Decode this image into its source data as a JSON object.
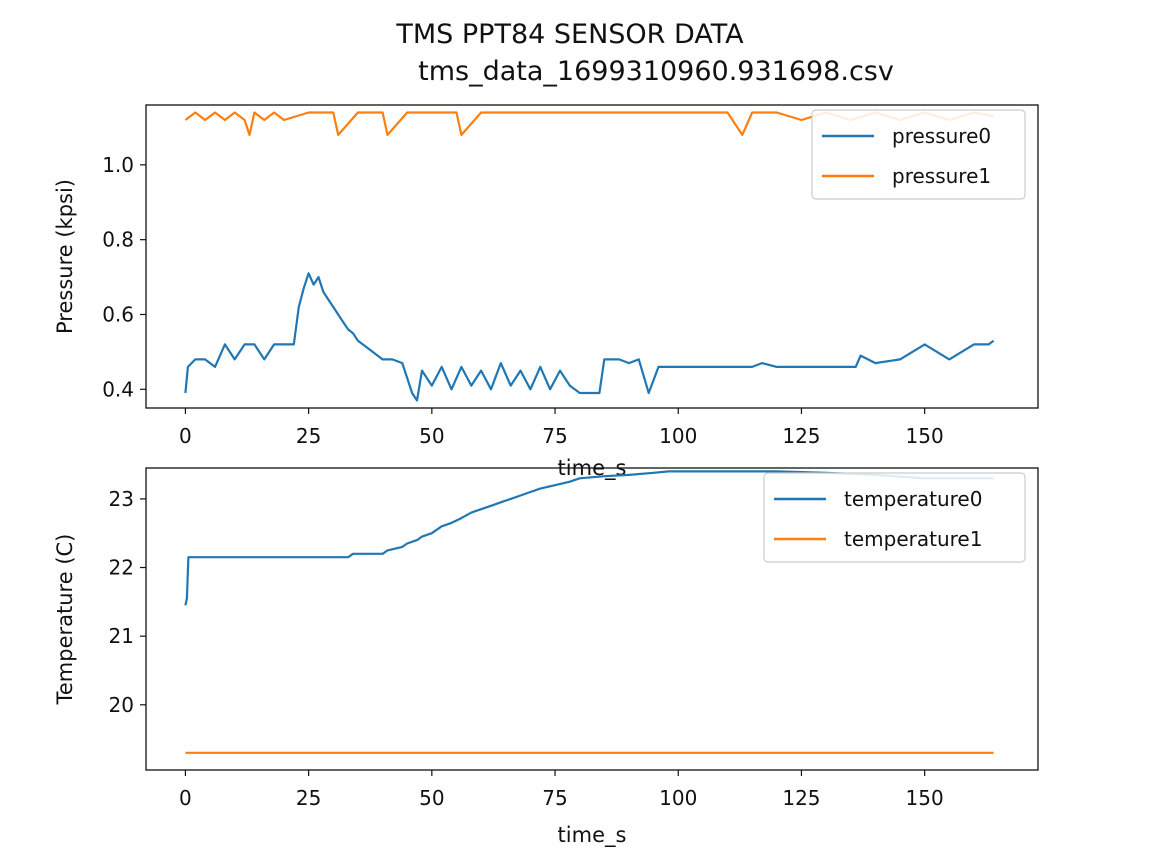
{
  "figure": {
    "title": "TMS PPT84 SENSOR DATA",
    "subtitle": "tms_data_1699310960.931698.csv"
  },
  "chart_data": [
    {
      "type": "line",
      "xlabel": "time_s",
      "ylabel": "Pressure (kpsi)",
      "xlim": [
        -8,
        173
      ],
      "ylim": [
        0.35,
        1.16
      ],
      "xticks": [
        0,
        25,
        50,
        75,
        100,
        125,
        150
      ],
      "yticks": [
        0.4,
        0.6,
        0.8,
        1.0
      ],
      "ytick_labels": [
        "0.4",
        "0.6",
        "0.8",
        "1.0"
      ],
      "legend_position": "top-right",
      "grid": false,
      "series": [
        {
          "name": "pressure0",
          "color": "#1f77b4",
          "x": [
            0,
            0.5,
            2,
            4,
            6,
            8,
            10,
            12,
            14,
            16,
            18,
            20,
            22,
            23,
            24,
            25,
            26,
            27,
            28,
            29,
            30,
            31,
            32,
            33,
            34,
            35,
            36,
            37,
            38,
            39,
            40,
            42,
            44,
            46,
            47,
            48,
            50,
            52,
            54,
            56,
            58,
            60,
            62,
            64,
            66,
            68,
            70,
            72,
            74,
            76,
            78,
            80,
            82,
            84,
            85,
            88,
            90,
            92,
            94,
            96,
            98,
            100,
            105,
            110,
            115,
            117,
            120,
            125,
            130,
            134,
            136,
            137,
            140,
            145,
            150,
            155,
            160,
            163,
            164
          ],
          "y": [
            0.39,
            0.46,
            0.48,
            0.48,
            0.46,
            0.52,
            0.48,
            0.52,
            0.52,
            0.48,
            0.52,
            0.52,
            0.52,
            0.62,
            0.67,
            0.71,
            0.68,
            0.7,
            0.66,
            0.64,
            0.62,
            0.6,
            0.58,
            0.56,
            0.55,
            0.53,
            0.52,
            0.51,
            0.5,
            0.49,
            0.48,
            0.48,
            0.47,
            0.39,
            0.37,
            0.45,
            0.41,
            0.46,
            0.4,
            0.46,
            0.41,
            0.45,
            0.4,
            0.47,
            0.41,
            0.45,
            0.4,
            0.46,
            0.4,
            0.45,
            0.41,
            0.39,
            0.39,
            0.39,
            0.48,
            0.48,
            0.47,
            0.48,
            0.39,
            0.46,
            0.46,
            0.46,
            0.46,
            0.46,
            0.46,
            0.47,
            0.46,
            0.46,
            0.46,
            0.46,
            0.46,
            0.49,
            0.47,
            0.48,
            0.52,
            0.48,
            0.52,
            0.52,
            0.53
          ]
        },
        {
          "name": "pressure1",
          "color": "#ff7f0e",
          "x": [
            0,
            2,
            4,
            6,
            8,
            10,
            12,
            13,
            14,
            16,
            18,
            20,
            25,
            30,
            31,
            35,
            40,
            41,
            45,
            50,
            55,
            56,
            60,
            65,
            70,
            75,
            80,
            85,
            90,
            95,
            100,
            105,
            110,
            113,
            115,
            120,
            125,
            130,
            135,
            140,
            145,
            150,
            155,
            160,
            164
          ],
          "y": [
            1.12,
            1.14,
            1.12,
            1.14,
            1.12,
            1.14,
            1.12,
            1.08,
            1.14,
            1.12,
            1.14,
            1.12,
            1.14,
            1.14,
            1.08,
            1.14,
            1.14,
            1.08,
            1.14,
            1.14,
            1.14,
            1.08,
            1.14,
            1.14,
            1.14,
            1.14,
            1.14,
            1.14,
            1.14,
            1.14,
            1.14,
            1.14,
            1.14,
            1.08,
            1.14,
            1.14,
            1.12,
            1.14,
            1.12,
            1.14,
            1.12,
            1.14,
            1.12,
            1.14,
            1.13
          ]
        }
      ]
    },
    {
      "type": "line",
      "xlabel": "time_s",
      "ylabel": "Temperature (C)",
      "xlim": [
        -8,
        173
      ],
      "ylim": [
        19.05,
        23.45
      ],
      "xticks": [
        0,
        25,
        50,
        75,
        100,
        125,
        150
      ],
      "yticks": [
        20,
        21,
        22,
        23
      ],
      "ytick_labels": [
        "20",
        "21",
        "22",
        "23"
      ],
      "legend_position": "top-right",
      "grid": false,
      "series": [
        {
          "name": "temperature0",
          "color": "#1f77b4",
          "x": [
            0,
            0.3,
            0.6,
            10,
            20,
            30,
            33,
            34,
            40,
            41,
            44,
            45,
            47,
            48,
            50,
            52,
            54,
            56,
            58,
            60,
            62,
            64,
            66,
            68,
            70,
            72,
            75,
            78,
            80,
            85,
            90,
            95,
            98,
            100,
            110,
            120,
            130,
            140,
            150,
            160,
            164
          ],
          "y": [
            21.45,
            21.55,
            22.15,
            22.15,
            22.15,
            22.15,
            22.15,
            22.2,
            22.2,
            22.25,
            22.3,
            22.35,
            22.4,
            22.45,
            22.5,
            22.6,
            22.65,
            22.72,
            22.8,
            22.85,
            22.9,
            22.95,
            23.0,
            23.05,
            23.1,
            23.15,
            23.2,
            23.25,
            23.3,
            23.33,
            23.35,
            23.38,
            23.4,
            23.4,
            23.4,
            23.4,
            23.38,
            23.35,
            23.3,
            23.3,
            23.3
          ]
        },
        {
          "name": "temperature1",
          "color": "#ff7f0e",
          "x": [
            0,
            20,
            40,
            60,
            80,
            100,
            120,
            140,
            160,
            164
          ],
          "y": [
            19.3,
            19.3,
            19.3,
            19.3,
            19.3,
            19.3,
            19.3,
            19.3,
            19.3,
            19.3
          ]
        }
      ]
    }
  ]
}
